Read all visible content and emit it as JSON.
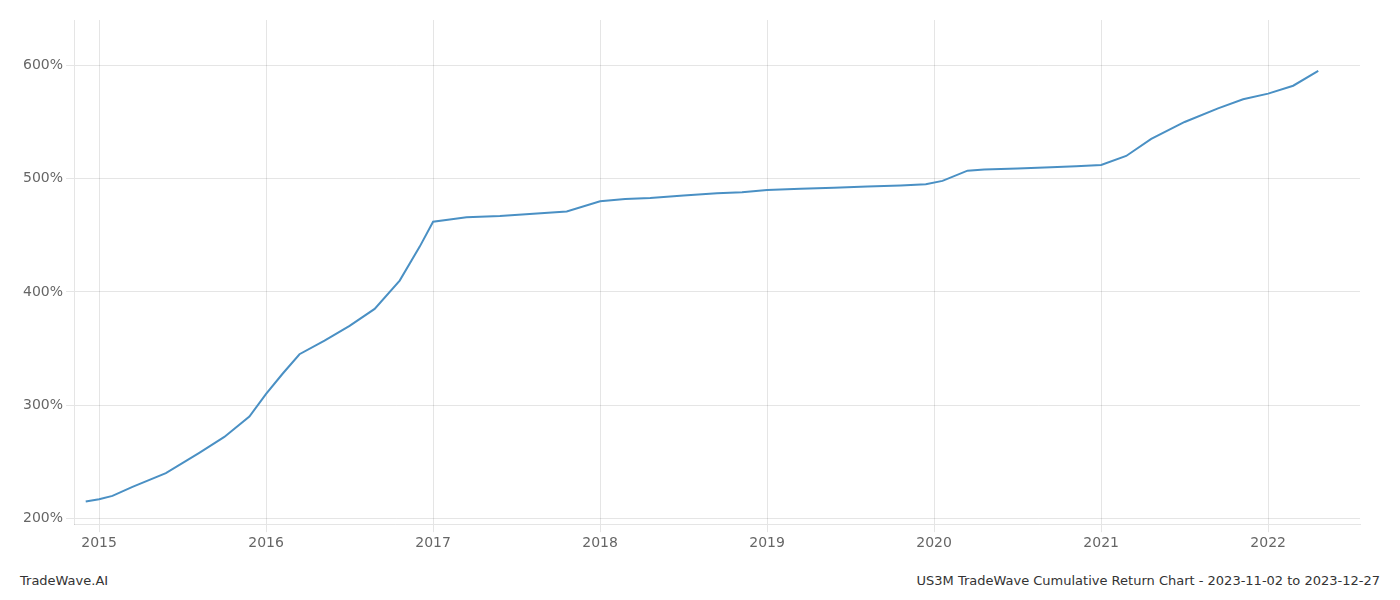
{
  "chart_data": {
    "type": "line",
    "annotations": [
      "TradeWave.AI",
      "US3M TradeWave Cumulative Return Chart - 2023-11-02 to 2023-12-27"
    ],
    "x": [
      2014.92,
      2015.0,
      2015.08,
      2015.2,
      2015.4,
      2015.6,
      2015.75,
      2015.9,
      2016.0,
      2016.1,
      2016.2,
      2016.35,
      2016.5,
      2016.65,
      2016.8,
      2016.92,
      2017.0,
      2017.1,
      2017.2,
      2017.4,
      2017.6,
      2017.8,
      2018.0,
      2018.15,
      2018.3,
      2018.5,
      2018.7,
      2018.85,
      2019.0,
      2019.2,
      2019.4,
      2019.6,
      2019.8,
      2019.95,
      2020.05,
      2020.2,
      2020.3,
      2020.5,
      2020.7,
      2020.85,
      2021.0,
      2021.15,
      2021.3,
      2021.5,
      2021.7,
      2021.85,
      2022.0,
      2022.15,
      2022.3
    ],
    "values": [
      215,
      217,
      220,
      228,
      240,
      258,
      272,
      290,
      310,
      328,
      345,
      357,
      370,
      385,
      410,
      440,
      462,
      464,
      466,
      467,
      469,
      471,
      480,
      482,
      483,
      485,
      487,
      488,
      490,
      491,
      492,
      493,
      494,
      495,
      498,
      507,
      508,
      509,
      510,
      511,
      512,
      520,
      535,
      550,
      562,
      570,
      575,
      582,
      595
    ],
    "color": "#4a90c4",
    "xlim": [
      2014.85,
      2022.55
    ],
    "ylim": [
      195,
      640
    ],
    "xticks": [
      2015,
      2016,
      2017,
      2018,
      2019,
      2020,
      2021,
      2022
    ],
    "yticks": [
      {
        "value": 200,
        "label": "200%"
      },
      {
        "value": 300,
        "label": "300%"
      },
      {
        "value": 400,
        "label": "400%"
      },
      {
        "value": 500,
        "label": "500%"
      },
      {
        "value": 600,
        "label": "600%"
      }
    ],
    "grid": true
  }
}
